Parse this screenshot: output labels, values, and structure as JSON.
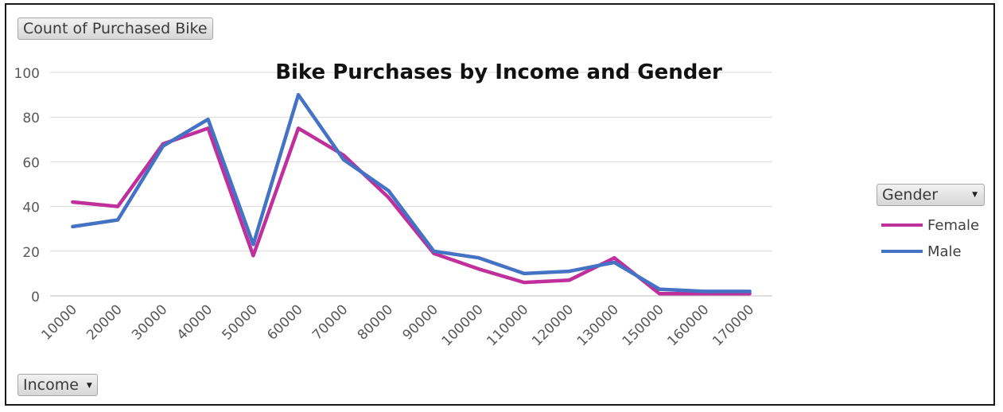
{
  "field_buttons": {
    "value": "Count of Purchased Bike",
    "axis": "Income",
    "legend": "Gender"
  },
  "chart_data": {
    "type": "line",
    "title": "Bike Purchases by Income and Gender",
    "xlabel": "",
    "ylabel": "",
    "categories": [
      "10000",
      "20000",
      "30000",
      "40000",
      "50000",
      "60000",
      "70000",
      "80000",
      "90000",
      "100000",
      "110000",
      "120000",
      "130000",
      "150000",
      "160000",
      "170000"
    ],
    "series": [
      {
        "name": "Female",
        "color": "#c0309c",
        "values": [
          42,
          40,
          68,
          75,
          18,
          75,
          63,
          44,
          19,
          12,
          6,
          7,
          17,
          1,
          1,
          1
        ]
      },
      {
        "name": "Male",
        "color": "#4472c4",
        "values": [
          31,
          34,
          67,
          79,
          23,
          90,
          61,
          47,
          20,
          17,
          10,
          11,
          15,
          3,
          2,
          2
        ]
      }
    ],
    "ylim": [
      0,
      100
    ],
    "yticks": [
      0,
      20,
      40,
      60,
      80,
      100
    ],
    "grid": true,
    "legend_position": "right"
  }
}
